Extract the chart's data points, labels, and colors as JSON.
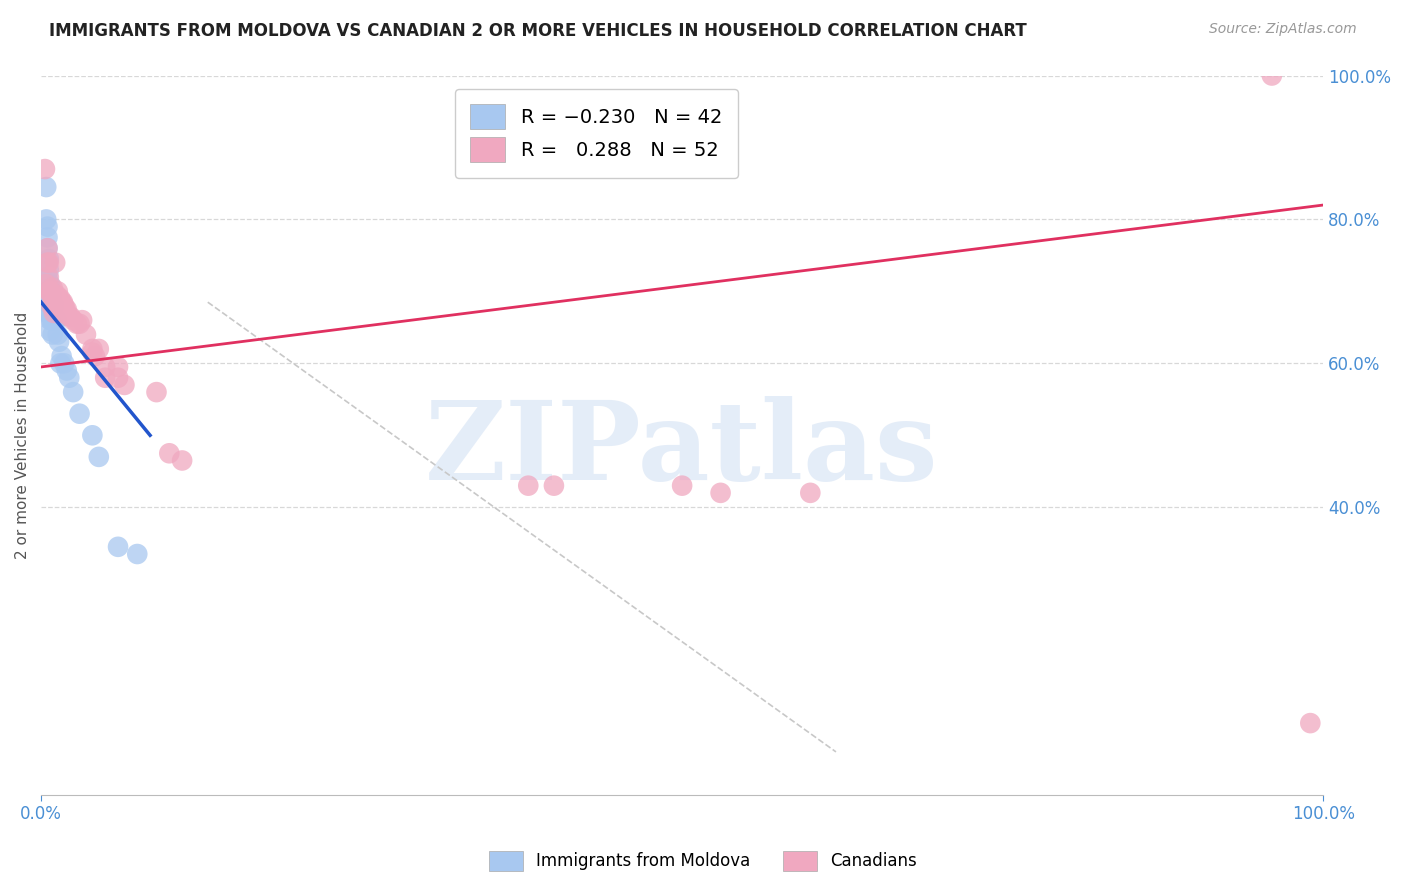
{
  "title": "IMMIGRANTS FROM MOLDOVA VS CANADIAN 2 OR MORE VEHICLES IN HOUSEHOLD CORRELATION CHART",
  "source": "Source: ZipAtlas.com",
  "ylabel": "2 or more Vehicles in Household",
  "xlim": [
    0,
    1
  ],
  "ylim": [
    0,
    1
  ],
  "y_tick_positions_right": [
    1.0,
    0.8,
    0.6,
    0.4
  ],
  "y_tick_labels_right": [
    "100.0%",
    "80.0%",
    "60.0%",
    "40.0%"
  ],
  "legend_blue_label": "Immigrants from Moldova",
  "legend_pink_label": "Canadians",
  "watermark": "ZIPatlas",
  "background_color": "#ffffff",
  "grid_color": "#d8d8d8",
  "title_color": "#222222",
  "source_color": "#999999",
  "right_axis_color": "#4a8fd4",
  "blue_scatter_color": "#a8c8f0",
  "pink_scatter_color": "#f0a8c0",
  "blue_line_color": "#2255cc",
  "pink_line_color": "#e03060",
  "dashed_line_color": "#c8c8c8",
  "blue_x": [
    0.004,
    0.004,
    0.005,
    0.005,
    0.005,
    0.005,
    0.005,
    0.005,
    0.005,
    0.006,
    0.006,
    0.006,
    0.006,
    0.006,
    0.007,
    0.007,
    0.007,
    0.007,
    0.007,
    0.008,
    0.008,
    0.008,
    0.009,
    0.009,
    0.009,
    0.01,
    0.01,
    0.011,
    0.012,
    0.013,
    0.014,
    0.015,
    0.016,
    0.018,
    0.02,
    0.022,
    0.025,
    0.03,
    0.04,
    0.045,
    0.06,
    0.075
  ],
  "blue_y": [
    0.845,
    0.8,
    0.79,
    0.775,
    0.76,
    0.74,
    0.72,
    0.695,
    0.67,
    0.745,
    0.73,
    0.71,
    0.69,
    0.67,
    0.71,
    0.695,
    0.68,
    0.66,
    0.645,
    0.695,
    0.68,
    0.66,
    0.68,
    0.66,
    0.64,
    0.68,
    0.66,
    0.66,
    0.66,
    0.64,
    0.63,
    0.6,
    0.61,
    0.6,
    0.59,
    0.58,
    0.56,
    0.53,
    0.5,
    0.47,
    0.345,
    0.335
  ],
  "pink_x": [
    0.003,
    0.004,
    0.005,
    0.005,
    0.006,
    0.006,
    0.006,
    0.007,
    0.008,
    0.008,
    0.009,
    0.01,
    0.01,
    0.011,
    0.012,
    0.012,
    0.013,
    0.013,
    0.014,
    0.015,
    0.016,
    0.016,
    0.017,
    0.018,
    0.019,
    0.02,
    0.022,
    0.023,
    0.025,
    0.028,
    0.03,
    0.032,
    0.035,
    0.04,
    0.04,
    0.042,
    0.045,
    0.05,
    0.05,
    0.06,
    0.06,
    0.065,
    0.09,
    0.1,
    0.11,
    0.38,
    0.4,
    0.5,
    0.53,
    0.6,
    0.96,
    0.99
  ],
  "pink_y": [
    0.87,
    0.71,
    0.76,
    0.74,
    0.74,
    0.72,
    0.7,
    0.7,
    0.695,
    0.68,
    0.705,
    0.685,
    0.67,
    0.74,
    0.695,
    0.68,
    0.7,
    0.69,
    0.68,
    0.69,
    0.685,
    0.67,
    0.685,
    0.68,
    0.675,
    0.675,
    0.665,
    0.665,
    0.66,
    0.655,
    0.655,
    0.66,
    0.64,
    0.62,
    0.615,
    0.61,
    0.62,
    0.595,
    0.58,
    0.58,
    0.595,
    0.57,
    0.56,
    0.475,
    0.465,
    0.43,
    0.43,
    0.43,
    0.42,
    0.42,
    1.0,
    0.1
  ],
  "blue_line_x": [
    0.0,
    0.085
  ],
  "blue_line_y_start": 0.685,
  "blue_line_y_end": 0.5,
  "pink_line_x": [
    0.0,
    1.0
  ],
  "pink_line_y_start": 0.595,
  "pink_line_y_end": 0.82,
  "dash_line_x": [
    0.13,
    0.62
  ],
  "dash_line_y": [
    0.685,
    0.06
  ]
}
